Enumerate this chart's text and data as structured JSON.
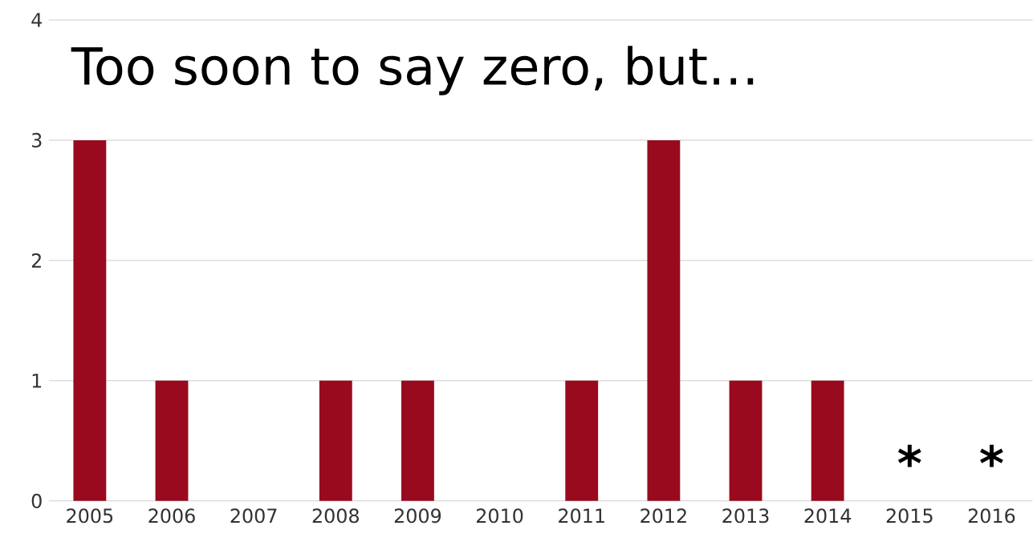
{
  "chart_data": {
    "type": "bar",
    "title": "Too soon to say zero, but…",
    "categories": [
      "2005",
      "2006",
      "2007",
      "2008",
      "2009",
      "2010",
      "2011",
      "2012",
      "2013",
      "2014",
      "2015",
      "2016"
    ],
    "values": [
      3,
      1,
      0,
      1,
      1,
      0,
      1,
      3,
      1,
      1,
      null,
      null
    ],
    "color": "#990a1e",
    "ylim": [
      0,
      4
    ],
    "yticks": [
      0,
      1,
      2,
      3,
      4
    ],
    "grid": "y",
    "annotations": [
      "*",
      "*"
    ]
  }
}
